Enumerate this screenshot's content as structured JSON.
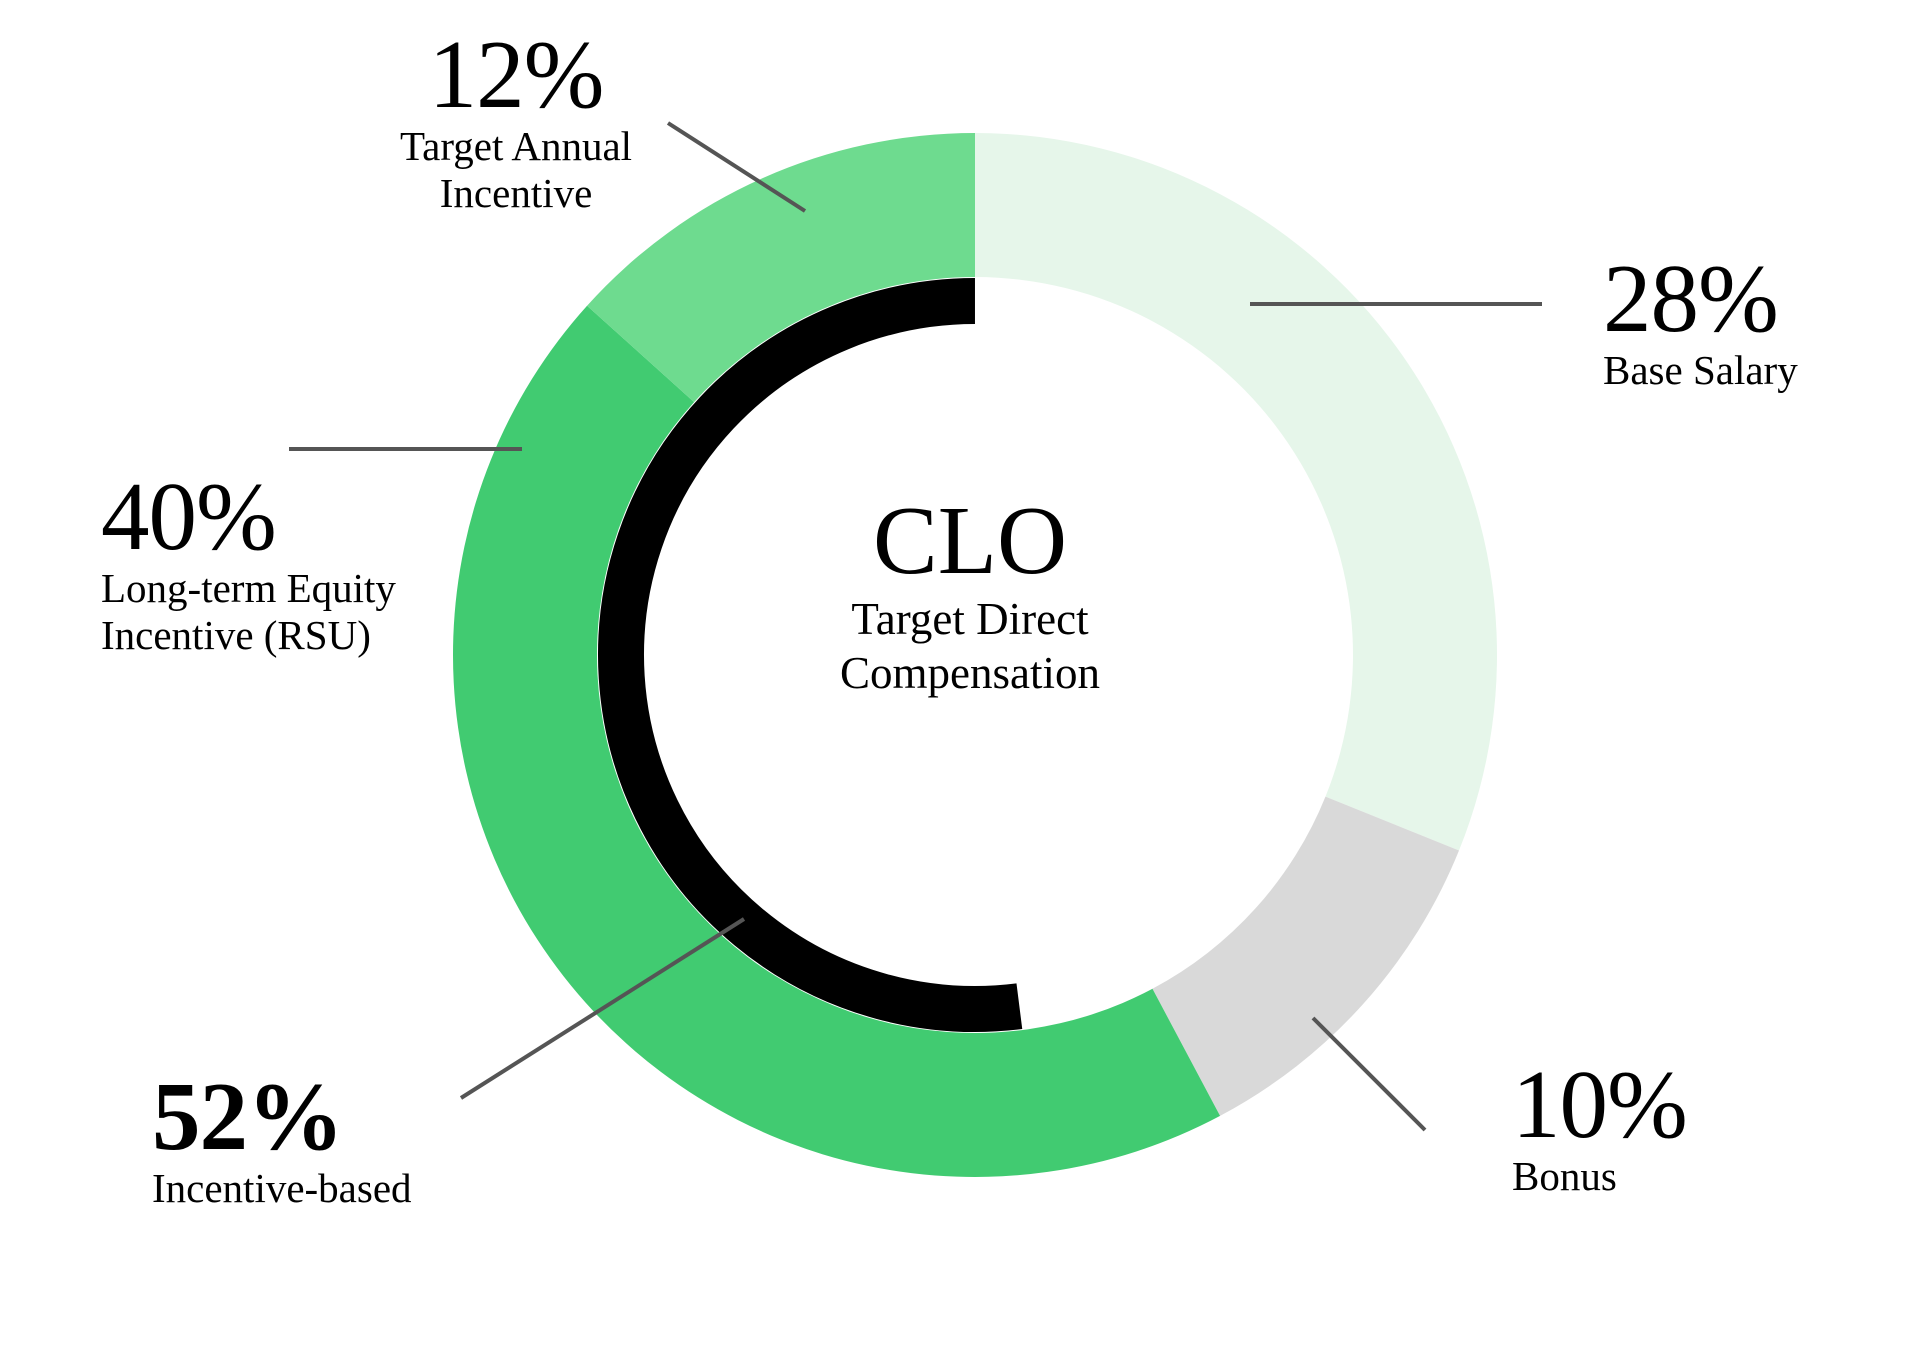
{
  "chart_data": {
    "type": "donut",
    "center": {
      "title": "CLO",
      "subtitle": "Target Direct\nCompensation"
    },
    "slices": [
      {
        "label": "Base Salary",
        "value": 28,
        "display": "28%",
        "color": "#e6f6ea"
      },
      {
        "label": "Bonus",
        "value": 10,
        "display": "10%",
        "color": "#d9d9d9"
      },
      {
        "label": "Long-term Equity\nIncentive (RSU)",
        "value": 40,
        "display": "40%",
        "color": "#41cb71"
      },
      {
        "label": "Target Annual\nIncentive",
        "value": 12,
        "display": "12%",
        "color": "#6edb8f"
      }
    ],
    "inner_arc": {
      "label": "Incentive-based",
      "value": 52,
      "display": "52%",
      "color": "#000000"
    },
    "leader_line_color": "#555555"
  }
}
